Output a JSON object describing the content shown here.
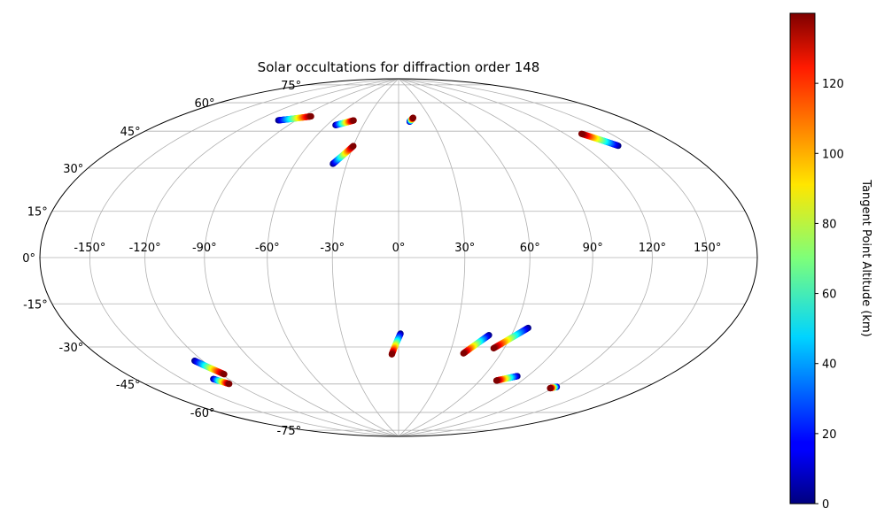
{
  "chart_data": {
    "type": "scatter",
    "projection": "hammer",
    "title": "Solar occultations for diffraction order 148",
    "grid": true,
    "lon_ticks": [
      "-150°",
      "-120°",
      "-90°",
      "-60°",
      "-30°",
      "0°",
      "30°",
      "60°",
      "90°",
      "120°",
      "150°"
    ],
    "lat_ticks": [
      "75°",
      "60°",
      "45°",
      "30°",
      "15°",
      "0°",
      "-15°",
      "-30°",
      "-45°",
      "-60°",
      "-75°"
    ],
    "colorbar": {
      "label": "Tangent Point Altitude (km)",
      "range": [
        0,
        140
      ],
      "ticks": [
        "0",
        "20",
        "40",
        "60",
        "80",
        "100",
        "120"
      ],
      "colormap": "jet"
    },
    "series": [
      {
        "lon_start": -104,
        "lat_start": 61,
        "lon_end": -83,
        "lat_end": 65
      },
      {
        "lon_start": -53,
        "lat_start": 62,
        "lon_end": -41,
        "lat_end": 65
      },
      {
        "lon_start": -38,
        "lat_start": 43,
        "lon_end": -30,
        "lat_end": 52
      },
      {
        "lon_start": 10,
        "lat_start": 65,
        "lon_end": 14,
        "lat_end": 67
      },
      {
        "lon_start": 142,
        "lat_start": 44,
        "lon_end": 131,
        "lat_end": 51
      },
      {
        "lon_start": -125,
        "lat_start": -42,
        "lon_end": -118,
        "lat_end": -49
      },
      {
        "lon_start": -130,
        "lat_start": -50,
        "lon_end": -125,
        "lat_end": -53
      },
      {
        "lon_start": 1,
        "lat_start": -35,
        "lon_end": -4,
        "lat_end": -45
      },
      {
        "lon_start": 48,
        "lat_start": -35,
        "lon_end": 38,
        "lat_end": -44
      },
      {
        "lon_start": 67,
        "lat_start": -31,
        "lon_end": 54,
        "lat_end": -41
      },
      {
        "lon_start": 83,
        "lat_start": -53,
        "lon_end": 72,
        "lat_end": -56
      },
      {
        "lon_start": 121,
        "lat_start": -55,
        "lon_end": 118,
        "lat_end": -56
      }
    ]
  }
}
